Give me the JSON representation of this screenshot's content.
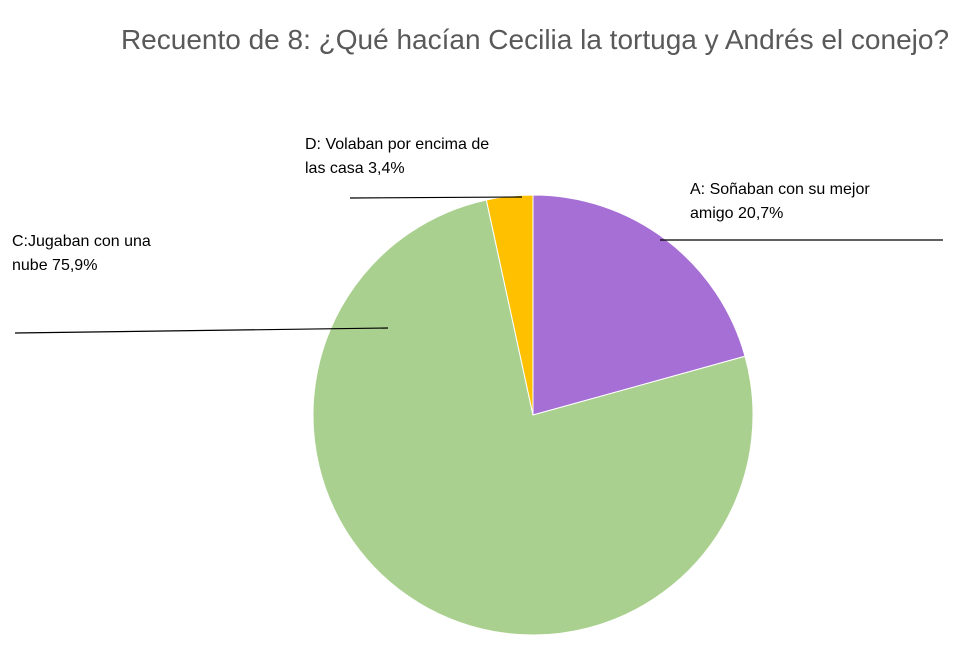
{
  "chart_data": {
    "type": "pie",
    "title": "Recuento de 8:  ¿Qué hacían Cecilia la tortuga y Andrés el conejo?",
    "categories": [
      "A: Soñaban con su mejor amigo",
      "C:Jugaban con una nube",
      "D: Volaban por encima de las casa"
    ],
    "values": [
      20.7,
      75.9,
      3.4
    ],
    "value_labels": [
      "20,7%",
      "75,9%",
      "3,4%"
    ],
    "colors": [
      "#a66fd6",
      "#aad08f",
      "#ffc000"
    ]
  }
}
